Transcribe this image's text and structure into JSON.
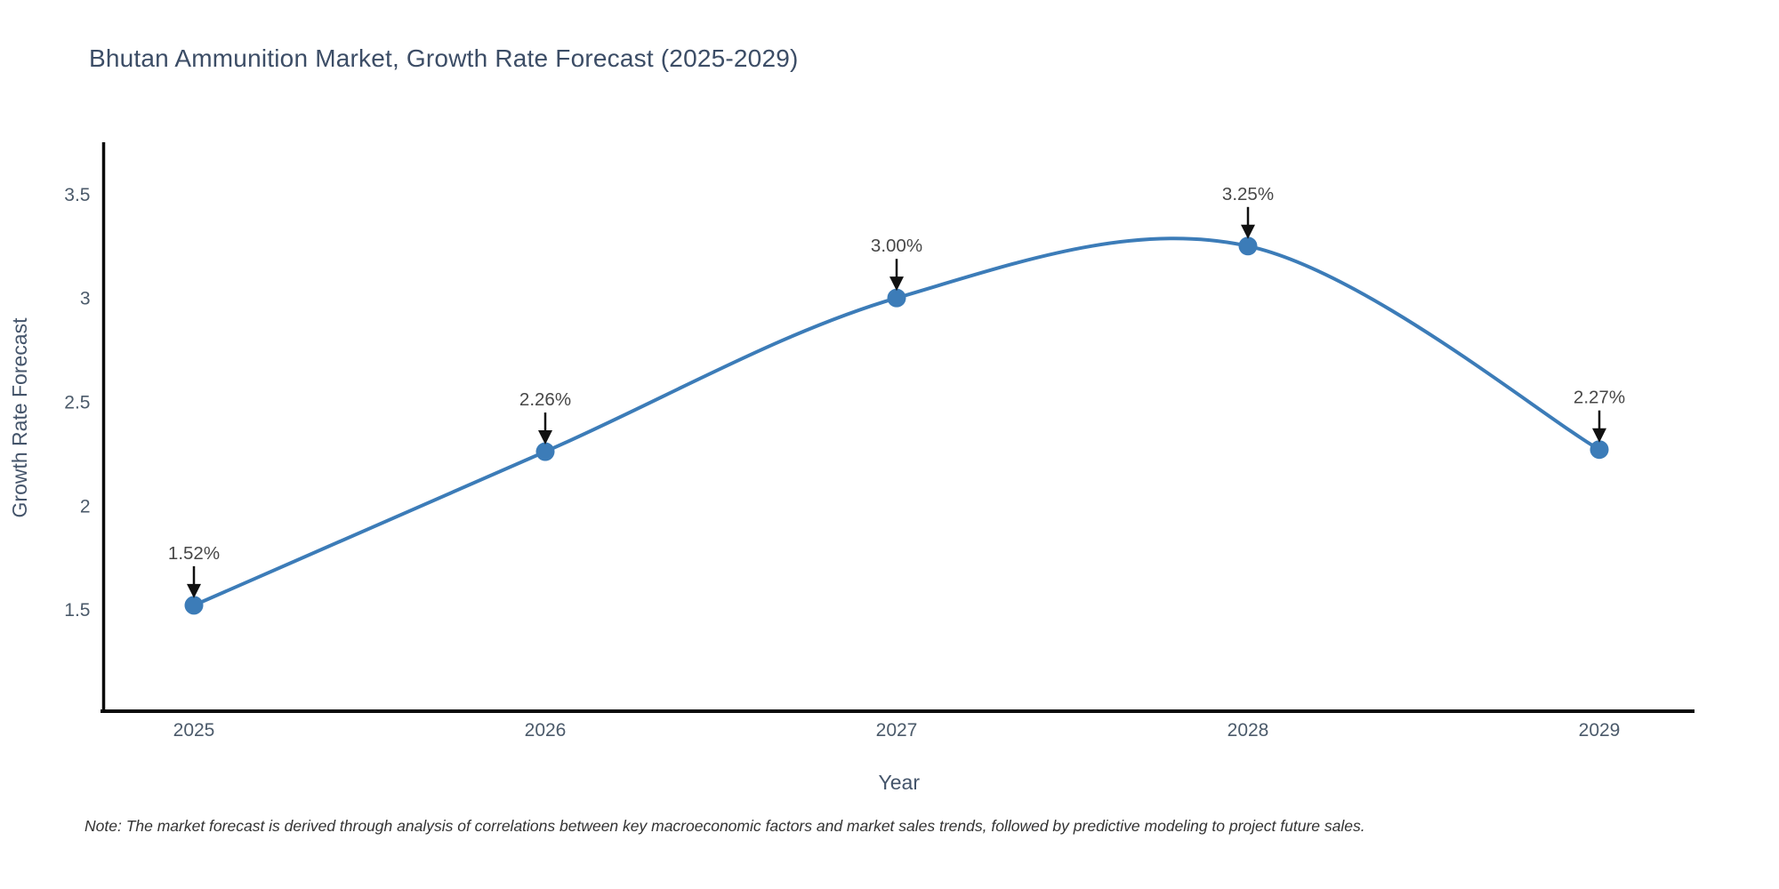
{
  "chart_data": {
    "type": "line",
    "line_shape": "spline",
    "title": "Bhutan Ammunition Market, Growth Rate Forecast (2025-2029)",
    "xlabel": "Year",
    "ylabel": "Growth Rate Forecast",
    "categories": [
      "2025",
      "2026",
      "2027",
      "2028",
      "2029"
    ],
    "series": [
      {
        "name": "Growth Rate Forecast",
        "values": [
          1.52,
          2.26,
          3.0,
          3.25,
          2.27
        ],
        "point_labels": [
          "1.52%",
          "2.26%",
          "3.00%",
          "3.25%",
          "2.27%"
        ]
      }
    ],
    "yticks": [
      1.5,
      2,
      2.5,
      3,
      3.5
    ],
    "ytick_labels": [
      "1.5",
      "2",
      "2.5",
      "3",
      "3.5"
    ],
    "ylim": [
      1.01,
      3.75
    ],
    "grid": false,
    "legend": "none",
    "markers": true,
    "annotations_with_arrows": true
  },
  "note": "Note: The market forecast is derived through analysis of correlations between key macroeconomic factors and market sales trends, followed by predictive modeling to project future sales.",
  "colors": {
    "line": "#3c7cb8",
    "marker": "#3c7cb8",
    "arrow": "#111111",
    "spine": "#0a0a0a",
    "title_text": "#3c4d66",
    "axis_title_text": "#44546a",
    "tick_text": "#4b5a6a",
    "annotation_text": "#474747",
    "note_text": "#333333",
    "background": "#ffffff"
  }
}
